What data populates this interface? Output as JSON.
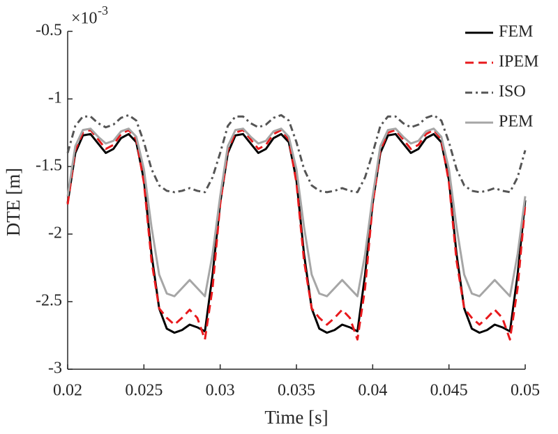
{
  "chart_data": {
    "type": "line",
    "x_label": "Time [s]",
    "y_label": "DTE [m]",
    "y_scale_base": "×10",
    "y_scale_exponent": "-3",
    "x": [
      0.02,
      0.0205,
      0.021,
      0.0215,
      0.022,
      0.0225,
      0.023,
      0.0235,
      0.024,
      0.0245,
      0.025,
      0.0255,
      0.026,
      0.0265,
      0.027,
      0.0275,
      0.028,
      0.0285,
      0.029,
      0.0295,
      0.03,
      0.0305,
      0.031,
      0.0315,
      0.032,
      0.0325,
      0.033,
      0.0335,
      0.034,
      0.0345,
      0.035,
      0.0355,
      0.036,
      0.0365,
      0.037,
      0.0375,
      0.038,
      0.0385,
      0.039,
      0.0395,
      0.04,
      0.0405,
      0.041,
      0.0415,
      0.042,
      0.0425,
      0.043,
      0.0435,
      0.044,
      0.0445,
      0.045,
      0.0455,
      0.046,
      0.0465,
      0.047,
      0.0475,
      0.048,
      0.0485,
      0.049,
      0.0495,
      0.05
    ],
    "series": [
      {
        "name": "FEM",
        "color": "#000000",
        "dash": "solid",
        "values": [
          -1.77,
          -1.4,
          -1.27,
          -1.26,
          -1.33,
          -1.4,
          -1.37,
          -1.29,
          -1.26,
          -1.32,
          -1.6,
          -2.15,
          -2.55,
          -2.7,
          -2.73,
          -2.71,
          -2.67,
          -2.69,
          -2.72,
          -2.3,
          -1.77,
          -1.4,
          -1.27,
          -1.26,
          -1.33,
          -1.4,
          -1.37,
          -1.29,
          -1.26,
          -1.32,
          -1.6,
          -2.15,
          -2.55,
          -2.7,
          -2.73,
          -2.71,
          -2.67,
          -2.69,
          -2.72,
          -2.3,
          -1.77,
          -1.4,
          -1.27,
          -1.26,
          -1.33,
          -1.4,
          -1.37,
          -1.29,
          -1.26,
          -1.32,
          -1.6,
          -2.15,
          -2.55,
          -2.7,
          -2.73,
          -2.71,
          -2.67,
          -2.69,
          -2.72,
          -2.3,
          -1.75
        ]
      },
      {
        "name": "IPEM",
        "color": "#e8191c",
        "dash": "dashed",
        "values": [
          -1.78,
          -1.38,
          -1.25,
          -1.23,
          -1.3,
          -1.37,
          -1.34,
          -1.26,
          -1.23,
          -1.3,
          -1.62,
          -2.2,
          -2.55,
          -2.62,
          -2.67,
          -2.62,
          -2.56,
          -2.62,
          -2.78,
          -2.4,
          -1.78,
          -1.38,
          -1.25,
          -1.23,
          -1.3,
          -1.37,
          -1.34,
          -1.26,
          -1.23,
          -1.3,
          -1.62,
          -2.2,
          -2.55,
          -2.62,
          -2.67,
          -2.62,
          -2.56,
          -2.62,
          -2.78,
          -2.4,
          -1.78,
          -1.38,
          -1.25,
          -1.23,
          -1.3,
          -1.37,
          -1.34,
          -1.26,
          -1.23,
          -1.3,
          -1.62,
          -2.2,
          -2.55,
          -2.62,
          -2.67,
          -2.62,
          -2.56,
          -2.62,
          -2.78,
          -2.4,
          -1.78
        ]
      },
      {
        "name": "ISO",
        "color": "#555555",
        "dash": "dashdot",
        "values": [
          -1.4,
          -1.2,
          -1.13,
          -1.13,
          -1.18,
          -1.21,
          -1.19,
          -1.14,
          -1.12,
          -1.16,
          -1.32,
          -1.52,
          -1.64,
          -1.68,
          -1.69,
          -1.68,
          -1.66,
          -1.68,
          -1.69,
          -1.58,
          -1.4,
          -1.2,
          -1.13,
          -1.13,
          -1.18,
          -1.21,
          -1.19,
          -1.14,
          -1.12,
          -1.16,
          -1.32,
          -1.52,
          -1.64,
          -1.68,
          -1.69,
          -1.68,
          -1.66,
          -1.68,
          -1.69,
          -1.58,
          -1.4,
          -1.2,
          -1.13,
          -1.13,
          -1.18,
          -1.21,
          -1.19,
          -1.14,
          -1.12,
          -1.16,
          -1.32,
          -1.52,
          -1.64,
          -1.68,
          -1.69,
          -1.68,
          -1.66,
          -1.68,
          -1.69,
          -1.58,
          -1.38
        ]
      },
      {
        "name": "PEM",
        "color": "#a6a6a6",
        "dash": "solid",
        "values": [
          -1.72,
          -1.35,
          -1.23,
          -1.22,
          -1.28,
          -1.33,
          -1.31,
          -1.24,
          -1.22,
          -1.28,
          -1.52,
          -1.95,
          -2.3,
          -2.44,
          -2.46,
          -2.4,
          -2.34,
          -2.4,
          -2.46,
          -2.15,
          -1.72,
          -1.35,
          -1.23,
          -1.22,
          -1.28,
          -1.33,
          -1.31,
          -1.24,
          -1.22,
          -1.28,
          -1.52,
          -1.95,
          -2.3,
          -2.44,
          -2.46,
          -2.4,
          -2.34,
          -2.4,
          -2.46,
          -2.15,
          -1.72,
          -1.35,
          -1.23,
          -1.22,
          -1.28,
          -1.33,
          -1.31,
          -1.24,
          -1.22,
          -1.28,
          -1.52,
          -1.95,
          -2.3,
          -2.44,
          -2.46,
          -2.4,
          -2.34,
          -2.4,
          -2.46,
          -2.15,
          -1.72
        ]
      }
    ],
    "xlim": [
      0.02,
      0.05
    ],
    "xticks": [
      0.02,
      0.025,
      0.03,
      0.035,
      0.04,
      0.045,
      0.05
    ],
    "ylim": [
      -3,
      -0.5
    ],
    "yticks": [
      -3,
      -2.5,
      -2,
      -1.5,
      -1,
      -0.5
    ],
    "grid": false,
    "legend_position": "top-right"
  }
}
